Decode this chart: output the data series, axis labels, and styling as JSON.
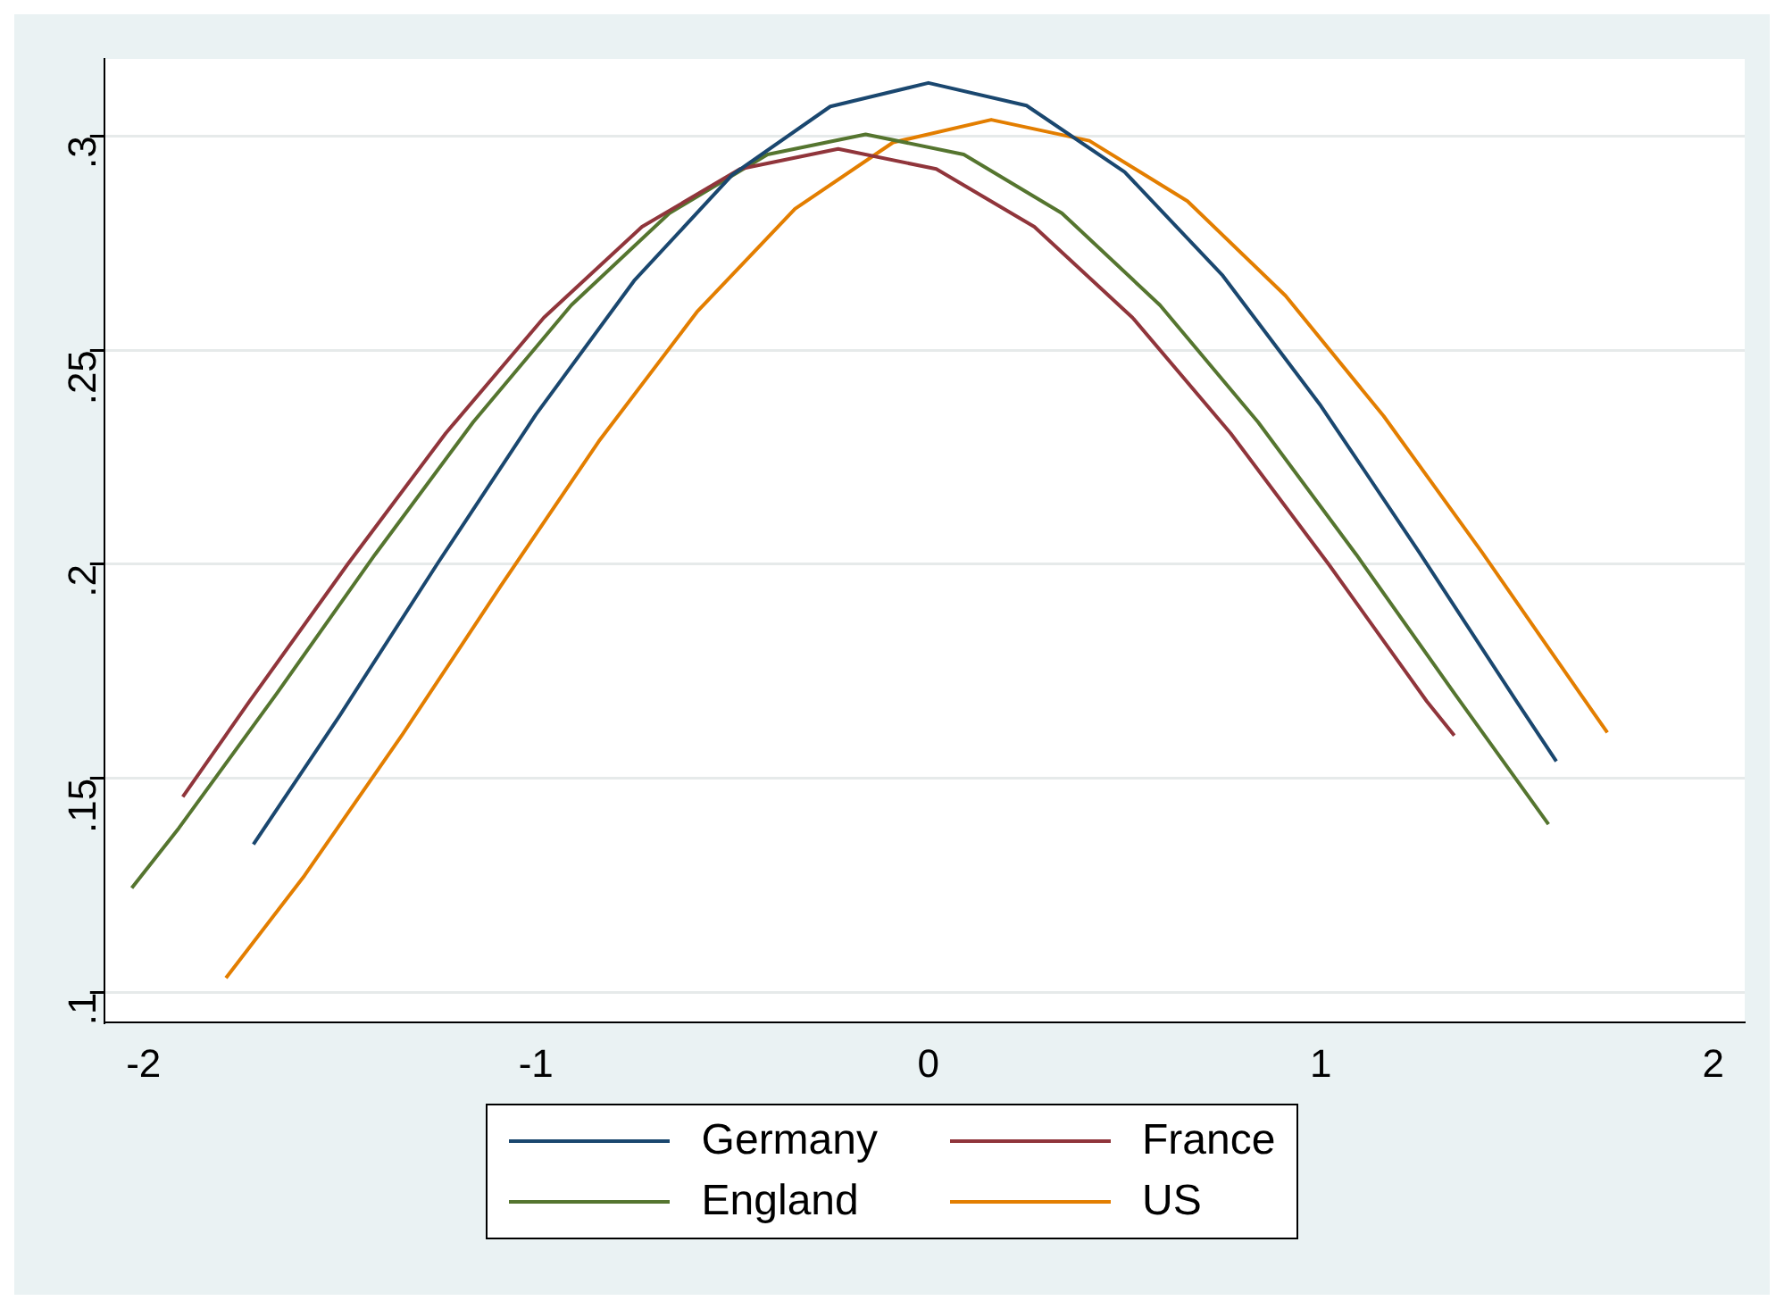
{
  "chart_data": {
    "type": "line",
    "xlim": [
      -2.1,
      2.08
    ],
    "ylim": [
      0.093,
      0.318
    ],
    "xticks": [
      -2,
      -1,
      0,
      1,
      2
    ],
    "yticks": [
      {
        "value": 0.1,
        "label": ".1"
      },
      {
        "value": 0.15,
        "label": ".15"
      },
      {
        "value": 0.2,
        "label": ".2"
      },
      {
        "value": 0.25,
        "label": ".25"
      },
      {
        "value": 0.3,
        "label": ".3"
      }
    ],
    "grid": "y",
    "legend": "bottom",
    "marker": "none",
    "line_style": "solid",
    "series": [
      {
        "name": "Germany",
        "color": "#1a476f",
        "x": [
          -1.72,
          -1.5,
          -1.25,
          -1,
          -0.75,
          -0.5,
          -0.25,
          0,
          0.25,
          0.5,
          0.75,
          1,
          1.25,
          1.5,
          1.6
        ],
        "values": [
          0.1346,
          0.1647,
          0.2003,
          0.235,
          0.2662,
          0.2909,
          0.3069,
          0.3124,
          0.3071,
          0.2916,
          0.2674,
          0.237,
          0.2029,
          0.1678,
          0.154
        ]
      },
      {
        "name": "France",
        "color": "#90353b",
        "x": [
          -1.9,
          -1.73,
          -1.48,
          -1.23,
          -0.98,
          -0.73,
          -0.48,
          -0.23,
          0.02,
          0.27,
          0.52,
          0.77,
          1.02,
          1.27,
          1.34
        ],
        "values": [
          0.1457,
          0.168,
          0.2,
          0.2306,
          0.2576,
          0.2788,
          0.2923,
          0.297,
          0.2923,
          0.2788,
          0.2576,
          0.2306,
          0.2,
          0.168,
          0.16
        ]
      },
      {
        "name": "England",
        "color": "#55752f",
        "x": [
          -2.03,
          -1.91,
          -1.66,
          -1.41,
          -1.16,
          -0.91,
          -0.66,
          -0.41,
          -0.16,
          0.09,
          0.34,
          0.59,
          0.84,
          1.09,
          1.34,
          1.58
        ],
        "values": [
          0.1244,
          0.1384,
          0.1699,
          0.2023,
          0.2332,
          0.2605,
          0.282,
          0.2957,
          0.3004,
          0.2957,
          0.282,
          0.2605,
          0.2332,
          0.2023,
          0.1699,
          0.1393
        ]
      },
      {
        "name": "US",
        "color": "#e37e00",
        "x": [
          -1.79,
          -1.59,
          -1.34,
          -1.09,
          -0.84,
          -0.59,
          -0.34,
          -0.09,
          0.16,
          0.41,
          0.66,
          0.91,
          1.16,
          1.41,
          1.66,
          1.73
        ],
        "values": [
          0.1034,
          0.1273,
          0.1603,
          0.1949,
          0.2287,
          0.2589,
          0.283,
          0.2985,
          0.3038,
          0.2989,
          0.2848,
          0.2627,
          0.2346,
          0.2029,
          0.1699,
          0.1607
        ]
      }
    ]
  }
}
